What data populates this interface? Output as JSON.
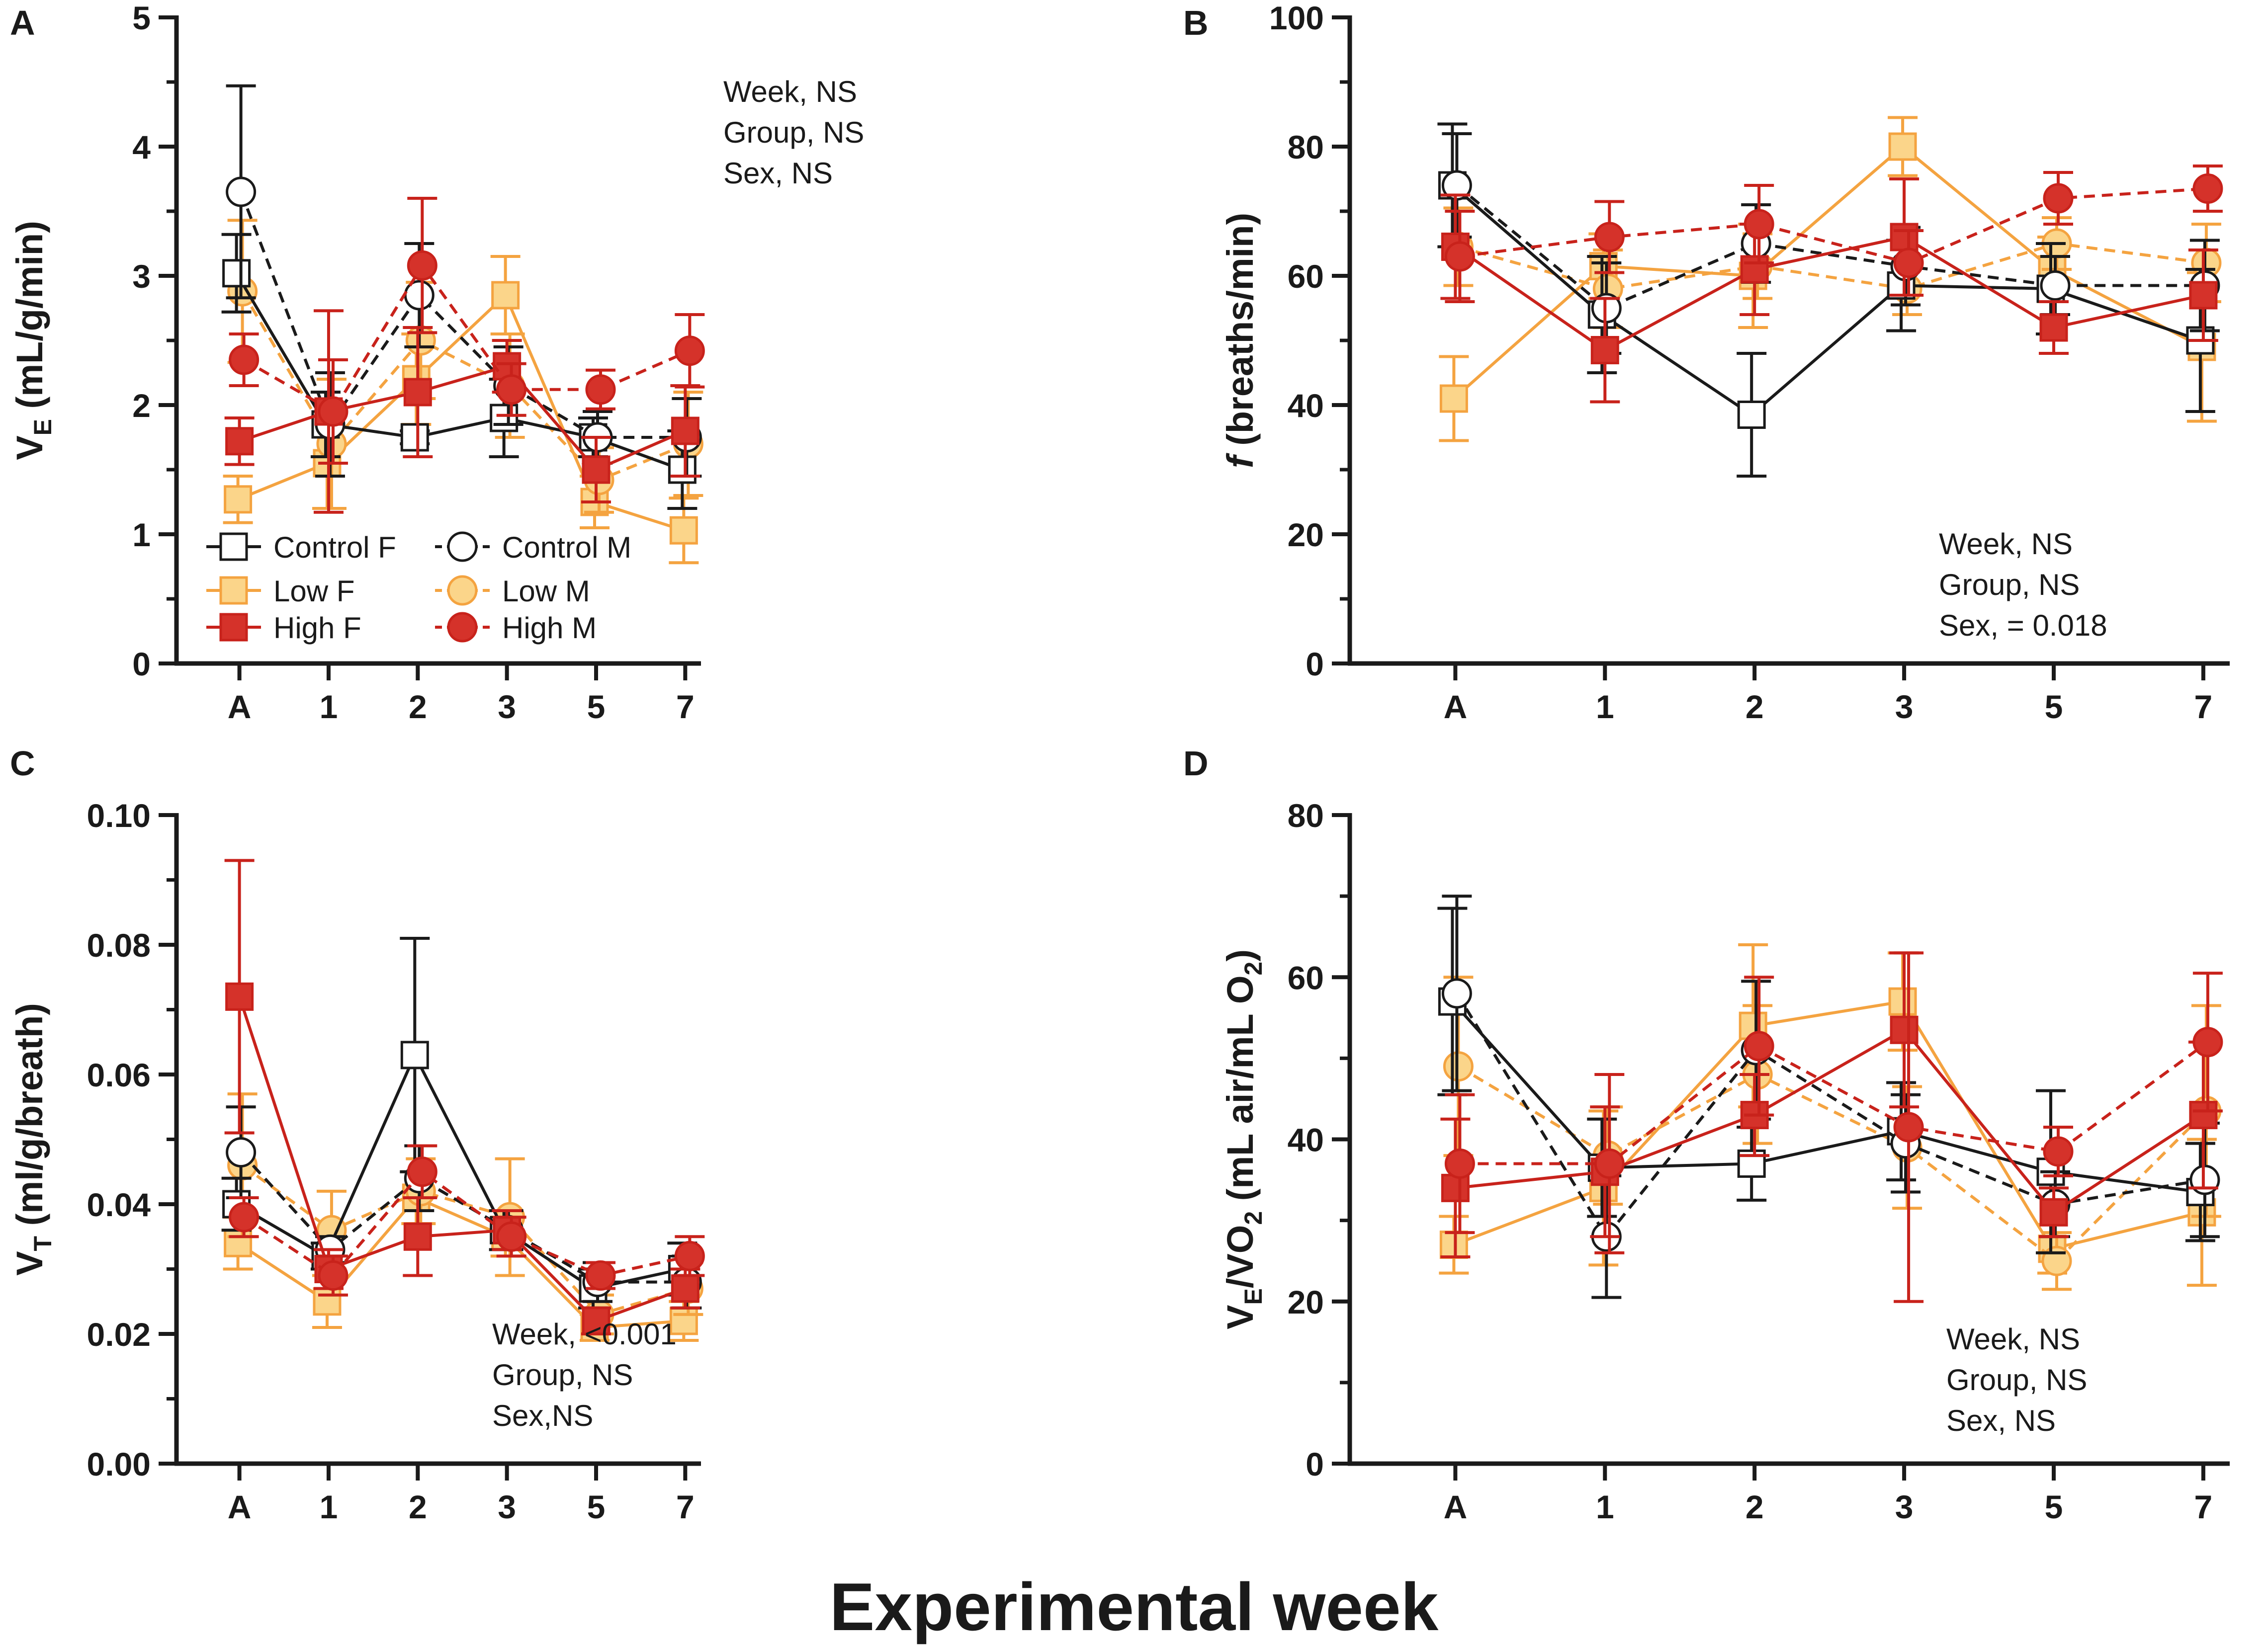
{
  "figure": {
    "xlabel": "Experimental week"
  },
  "legend": [
    {
      "label": "Control F",
      "color": "#1a1a1a",
      "marker": "square",
      "fill": "#ffffff",
      "dashed": false
    },
    {
      "label": "Low F",
      "color": "#f4a340",
      "marker": "square",
      "fill": "#fbd58a",
      "dashed": false
    },
    {
      "label": "High F",
      "color": "#c8221b",
      "marker": "square",
      "fill": "#d5322a",
      "dashed": false
    },
    {
      "label": "Control M",
      "color": "#1a1a1a",
      "marker": "circle",
      "fill": "#ffffff",
      "dashed": true
    },
    {
      "label": "Low M",
      "color": "#f4a340",
      "marker": "circle",
      "fill": "#fbd58a",
      "dashed": true
    },
    {
      "label": "High M",
      "color": "#c8221b",
      "marker": "circle",
      "fill": "#d5322a",
      "dashed": true
    }
  ],
  "chart_data": [
    {
      "panel": "A",
      "type": "line",
      "ylabel_main": "V",
      "ylabel_sub": "E",
      "ylabel_rest": " (mL/g/min)",
      "ylim": [
        0,
        5
      ],
      "yticks": [
        "0",
        "1",
        "2",
        "3",
        "4",
        "5"
      ],
      "categories": [
        "A",
        "1",
        "2",
        "3",
        "5",
        "7"
      ],
      "stats": [
        "Week, NS",
        "Group, NS",
        "Sex, NS"
      ],
      "series": [
        {
          "name": "Control F",
          "values": [
            3.02,
            1.85,
            1.75,
            1.9,
            1.75,
            1.5
          ],
          "errors": [
            0.3,
            0.25,
            0.05,
            0.3,
            0.15,
            0.3
          ]
        },
        {
          "name": "Low F",
          "values": [
            1.27,
            1.55,
            2.2,
            2.85,
            1.25,
            1.03
          ],
          "errors": [
            0.18,
            0.35,
            0.35,
            0.3,
            0.2,
            0.25
          ]
        },
        {
          "name": "High F",
          "values": [
            1.72,
            1.95,
            2.1,
            2.3,
            1.5,
            1.8
          ],
          "errors": [
            0.18,
            0.78,
            0.5,
            0.2,
            0.25,
            0.35
          ]
        },
        {
          "name": "Control M",
          "values": [
            3.65,
            1.85,
            2.85,
            2.15,
            1.75,
            1.75
          ],
          "errors": [
            0.82,
            0.4,
            0.4,
            0.3,
            0.2,
            0.3
          ]
        },
        {
          "name": "Low M",
          "values": [
            2.88,
            1.7,
            2.5,
            2.15,
            1.42,
            1.7
          ],
          "errors": [
            0.55,
            0.5,
            0.45,
            0.4,
            0.25,
            0.4
          ]
        },
        {
          "name": "High M",
          "values": [
            2.35,
            1.95,
            3.08,
            2.12,
            2.12,
            2.42
          ],
          "errors": [
            0.2,
            0.4,
            0.52,
            0.2,
            0.15,
            0.28
          ]
        }
      ]
    },
    {
      "panel": "B",
      "type": "line",
      "ylabel_main": "f",
      "ylabel_sub": "",
      "ylabel_rest": " (breaths/min)",
      "ylim": [
        0,
        100
      ],
      "yticks": [
        "0",
        "20",
        "40",
        "60",
        "80",
        "100"
      ],
      "categories": [
        "A",
        "1",
        "2",
        "3",
        "5",
        "7"
      ],
      "stats": [
        "Week, NS",
        "Group, NS",
        "Sex, = 0.018"
      ],
      "series": [
        {
          "name": "Control F",
          "values": [
            74.0,
            54.0,
            38.5,
            58.5,
            58.0,
            50.0
          ],
          "errors": [
            9.5,
            9.0,
            9.5,
            7.0,
            7.0,
            11.0
          ]
        },
        {
          "name": "Low F",
          "values": [
            41.0,
            61.5,
            60.0,
            80.0,
            61.0,
            49.0
          ],
          "errors": [
            6.5,
            5.0,
            8.0,
            4.5,
            5.0,
            11.5
          ]
        },
        {
          "name": "High F",
          "values": [
            64.5,
            48.5,
            61.0,
            66.0,
            52.0,
            57.0
          ],
          "errors": [
            8.0,
            8.0,
            7.0,
            9.0,
            4.0,
            7.0
          ]
        },
        {
          "name": "Control M",
          "values": [
            74.0,
            55.0,
            65.0,
            61.5,
            58.5,
            58.5
          ],
          "errors": [
            8.0,
            7.0,
            6.0,
            6.0,
            4.5,
            7.0
          ]
        },
        {
          "name": "Low M",
          "values": [
            64.5,
            58.0,
            61.5,
            58.0,
            65.0,
            62.0
          ],
          "errors": [
            6.0,
            6.0,
            5.0,
            4.0,
            4.0,
            6.0
          ]
        },
        {
          "name": "High M",
          "values": [
            63.0,
            66.0,
            68.0,
            62.0,
            72.0,
            73.5
          ],
          "errors": [
            7.0,
            5.5,
            6.0,
            5.0,
            4.0,
            3.5
          ]
        }
      ]
    },
    {
      "panel": "C",
      "type": "line",
      "ylabel_main": "V",
      "ylabel_sub": "T",
      "ylabel_rest": " (ml/g/breath)",
      "ylim": [
        0,
        0.1
      ],
      "yticks": [
        "0.00",
        "0.02",
        "0.04",
        "0.06",
        "0.08",
        "0.10"
      ],
      "categories": [
        "A",
        "1",
        "2",
        "3",
        "5",
        "7"
      ],
      "stats": [
        "Week, <0.001",
        "Group, NS",
        "Sex,NS"
      ],
      "series": [
        {
          "name": "Control F",
          "values": [
            0.04,
            0.032,
            0.063,
            0.036,
            0.027,
            0.03
          ],
          "errors": [
            0.004,
            0.002,
            0.018,
            0.003,
            0.003,
            0.004
          ]
        },
        {
          "name": "Low F",
          "values": [
            0.034,
            0.025,
            0.041,
            0.035,
            0.021,
            0.022
          ],
          "errors": [
            0.004,
            0.004,
            0.004,
            0.003,
            0.002,
            0.003
          ]
        },
        {
          "name": "High F",
          "values": [
            0.072,
            0.03,
            0.035,
            0.036,
            0.022,
            0.027
          ],
          "errors": [
            0.021,
            0.003,
            0.006,
            0.003,
            0.002,
            0.003
          ]
        },
        {
          "name": "Control M",
          "values": [
            0.048,
            0.033,
            0.044,
            0.036,
            0.028,
            0.028
          ],
          "errors": [
            0.007,
            0.002,
            0.005,
            0.003,
            0.003,
            0.004
          ]
        },
        {
          "name": "Low M",
          "values": [
            0.046,
            0.036,
            0.042,
            0.038,
            0.023,
            0.027
          ],
          "errors": [
            0.011,
            0.006,
            0.005,
            0.009,
            0.003,
            0.004
          ]
        },
        {
          "name": "High M",
          "values": [
            0.038,
            0.029,
            0.045,
            0.035,
            0.029,
            0.032
          ],
          "errors": [
            0.003,
            0.003,
            0.004,
            0.003,
            0.002,
            0.003
          ]
        }
      ]
    },
    {
      "panel": "D",
      "type": "line",
      "ylabel_main": "V",
      "ylabel_sub": "E",
      "ylabel_rest": "/VO",
      "ylabel_sub2": "2",
      "ylabel_tail": " (mL air/mL O",
      "ylabel_sub3": "2",
      "ylabel_end": ")",
      "ylim": [
        0,
        80
      ],
      "yticks": [
        "0",
        "20",
        "40",
        "60",
        "80"
      ],
      "categories": [
        "A",
        "1",
        "2",
        "3",
        "5",
        "7"
      ],
      "stats": [
        "Week, NS",
        "Group, NS",
        "Sex, NS"
      ],
      "series": [
        {
          "name": "Control F",
          "values": [
            57.0,
            36.5,
            37.0,
            41.0,
            36.0,
            33.5
          ],
          "errors": [
            11.5,
            6.0,
            4.5,
            6.0,
            10.0,
            6.0
          ]
        },
        {
          "name": "Low F",
          "values": [
            27.0,
            34.0,
            54.0,
            57.0,
            26.5,
            31.0
          ],
          "errors": [
            3.5,
            9.5,
            10.0,
            6.0,
            3.0,
            9.0
          ]
        },
        {
          "name": "High F",
          "values": [
            34.0,
            36.0,
            43.0,
            53.5,
            31.0,
            43.0
          ],
          "errors": [
            8.5,
            8.0,
            5.0,
            9.5,
            3.0,
            9.0
          ]
        },
        {
          "name": "Control M",
          "values": [
            58.0,
            28.0,
            51.0,
            39.5,
            32.0,
            35.0
          ],
          "errors": [
            12.0,
            7.5,
            8.5,
            6.0,
            4.0,
            7.0
          ]
        },
        {
          "name": "Low M",
          "values": [
            49.0,
            38.0,
            48.0,
            39.0,
            25.0,
            43.5
          ],
          "errors": [
            11.0,
            6.0,
            8.5,
            7.5,
            3.5,
            13.0
          ]
        },
        {
          "name": "High M",
          "values": [
            37.0,
            37.0,
            51.5,
            41.5,
            38.5,
            52.0
          ],
          "errors": [
            8.5,
            11.0,
            8.5,
            21.5,
            3.0,
            8.5
          ]
        }
      ]
    }
  ]
}
